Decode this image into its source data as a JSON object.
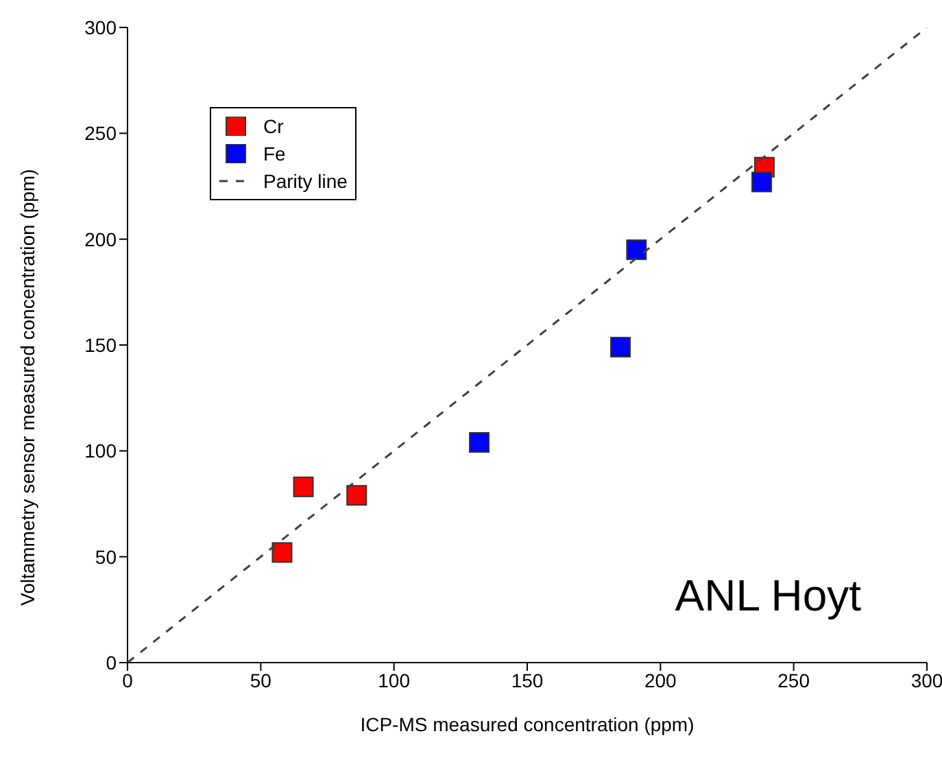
{
  "chart_data": {
    "type": "scatter",
    "xlabel": "ICP-MS measured concentration (ppm)",
    "ylabel": "Voltammetry sensor measured concentration (ppm)",
    "xlim": [
      0,
      300
    ],
    "ylim": [
      0,
      300
    ],
    "xticks": [
      0,
      50,
      100,
      150,
      200,
      250,
      300
    ],
    "yticks": [
      0,
      50,
      100,
      150,
      200,
      250,
      300
    ],
    "grid": false,
    "legend": "top left",
    "marker": "square",
    "annotations": [
      "ANL Hoyt"
    ],
    "series": [
      {
        "name": "Cr",
        "color": "#ff0000",
        "x": [
          58,
          66,
          86,
          239
        ],
        "values": [
          52,
          83,
          79,
          234
        ]
      },
      {
        "name": "Fe",
        "color": "#0000ff",
        "x": [
          132,
          185,
          191,
          238
        ],
        "values": [
          104,
          149,
          195,
          227
        ]
      },
      {
        "name": "Parity line",
        "type": "line",
        "line_style": "dashed",
        "marker": "none",
        "color": "#404040",
        "x": [
          0,
          300
        ],
        "values": [
          0,
          300
        ]
      }
    ]
  }
}
